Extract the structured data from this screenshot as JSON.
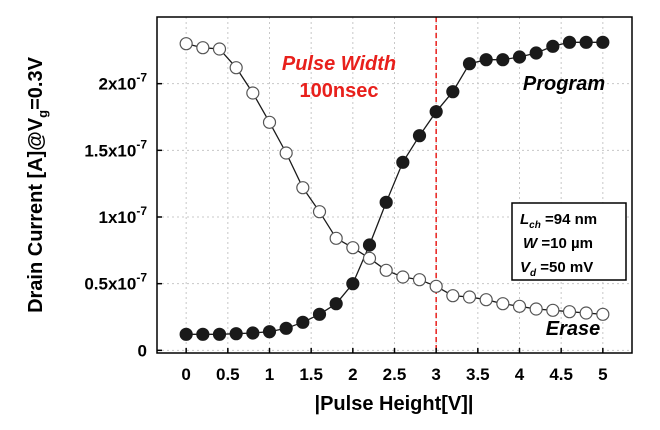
{
  "chart_data": {
    "type": "line",
    "xlabel": "|Pulse Height[V]|",
    "ylabel_main": "Drain Current [A]@V",
    "ylabel_sub": "g",
    "ylabel_tail": "=0.3V",
    "xlim": [
      -0.35,
      5.35
    ],
    "ylim": [
      -2e-09,
      2.5e-07
    ],
    "xticks": [
      0,
      0.5,
      1,
      1.5,
      2,
      2.5,
      3,
      3.5,
      4,
      4.5,
      5
    ],
    "xtick_labels": [
      "0",
      "0.5",
      "1",
      "1.5",
      "2",
      "2.5",
      "3",
      "3.5",
      "4",
      "4.5",
      "5"
    ],
    "yticks": [
      0,
      5e-08,
      1e-07,
      1.5e-07,
      2e-07
    ],
    "ytick_labels": [
      {
        "mant": "0",
        "exp": ""
      },
      {
        "mant": "0.5x10",
        "exp": "-7"
      },
      {
        "mant": "1x10",
        "exp": "-7"
      },
      {
        "mant": "1.5x10",
        "exp": "-7"
      },
      {
        "mant": "2x10",
        "exp": "-7"
      }
    ],
    "grid": true,
    "vline": {
      "x": 3.0,
      "color": "#e8201c"
    },
    "series": [
      {
        "name": "Program",
        "marker": "filled",
        "color": "#1a1a1a",
        "x": [
          0,
          0.2,
          0.4,
          0.6,
          0.8,
          1.0,
          1.2,
          1.4,
          1.6,
          1.8,
          2.0,
          2.2,
          2.4,
          2.6,
          2.8,
          3.0,
          3.2,
          3.4,
          3.6,
          3.8,
          4.0,
          4.2,
          4.4,
          4.6,
          4.8,
          5.0
        ],
        "y": [
          1.2e-08,
          1.2e-08,
          1.2e-08,
          1.25e-08,
          1.3e-08,
          1.4e-08,
          1.65e-08,
          2.1e-08,
          2.7e-08,
          3.5e-08,
          5e-08,
          7.9e-08,
          1.11e-07,
          1.41e-07,
          1.61e-07,
          1.79e-07,
          1.94e-07,
          2.15e-07,
          2.18e-07,
          2.18e-07,
          2.2e-07,
          2.23e-07,
          2.28e-07,
          2.31e-07,
          2.31e-07,
          2.31e-07
        ]
      },
      {
        "name": "Erase",
        "marker": "open",
        "color": "#1a1a1a",
        "x": [
          0,
          0.2,
          0.4,
          0.6,
          0.8,
          1.0,
          1.2,
          1.4,
          1.6,
          1.8,
          2.0,
          2.2,
          2.4,
          2.6,
          2.8,
          3.0,
          3.2,
          3.4,
          3.6,
          3.8,
          4.0,
          4.2,
          4.4,
          4.6,
          4.8,
          5.0
        ],
        "y": [
          2.3e-07,
          2.27e-07,
          2.26e-07,
          2.12e-07,
          1.93e-07,
          1.71e-07,
          1.48e-07,
          1.22e-07,
          1.04e-07,
          8.4e-08,
          7.7e-08,
          6.9e-08,
          6e-08,
          5.5e-08,
          5.3e-08,
          4.8e-08,
          4.1e-08,
          4e-08,
          3.8e-08,
          3.5e-08,
          3.3e-08,
          3.1e-08,
          3e-08,
          2.9e-08,
          2.8e-08,
          2.7e-08
        ]
      }
    ],
    "annotations": {
      "pulse_width_line1": "Pulse Width",
      "pulse_width_line2": "100nsec",
      "program_label": "Program",
      "erase_label": "Erase"
    },
    "params": [
      {
        "sym": "L",
        "sub": "ch",
        "val": " =94 nm"
      },
      {
        "sym": "W",
        "sub": "",
        "val": " =10 µm"
      },
      {
        "sym": "V",
        "sub": "d",
        "val": " =50 mV"
      }
    ]
  }
}
